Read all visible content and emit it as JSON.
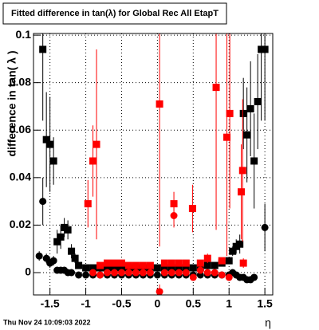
{
  "chart_data": {
    "type": "scatter",
    "title": "Fitted difference in tan(λ) for Global Rec All EtapT",
    "y_label": "difference in tan( λ )",
    "x_label": "η",
    "footer": "Thu Nov 24 10:09:03 2022",
    "xlim": [
      -1.73,
      1.61
    ],
    "ylim": [
      -0.0094,
      0.1007
    ],
    "xticks": [
      -1.5,
      -1,
      -0.5,
      0,
      0.5,
      1,
      1.5
    ],
    "yticks": [
      0,
      0.02,
      0.04,
      0.06,
      0.08,
      0.1
    ],
    "grid": true,
    "series": [
      {
        "color": "#000000",
        "marker": "square",
        "x": [
          -1.6,
          -1.55,
          -1.5,
          -1.45,
          -1.4,
          -1.35,
          -1.3,
          -1.25,
          -1.2,
          -1.15,
          -1.1,
          -1.0,
          -0.9,
          -0.8,
          -0.7,
          -0.6,
          -0.5,
          -0.4,
          -0.3,
          -0.2,
          -0.1,
          0,
          0.1,
          0.2,
          0.3,
          0.4,
          0.5,
          0.6,
          0.7,
          0.8,
          0.9,
          1.0,
          1.05,
          1.1,
          1.15,
          1.2,
          1.25,
          1.3,
          1.35,
          1.4,
          1.45,
          1.5
        ],
        "values": [
          0.094,
          0.056,
          0.054,
          0.047,
          0.013,
          0.015,
          0.019,
          0.018,
          0.009,
          0.006,
          0.003,
          0.002,
          0.002,
          0.002,
          0.002,
          0.002,
          0.002,
          0.002,
          0.002,
          0.002,
          0.002,
          0.002,
          0.002,
          0.002,
          0.002,
          0.002,
          0.002,
          0.002,
          0.003,
          0.003,
          0.004,
          0.005,
          0.009,
          0.011,
          0.012,
          0.067,
          0.058,
          0.069,
          0.047,
          0.072,
          0.094,
          0.094
        ],
        "errors": [
          0.03,
          0.02,
          0.02,
          0.01,
          0.005,
          0.005,
          0.004,
          0.004,
          0.003,
          0.002,
          0.001,
          0.0005,
          0.0005,
          0.0005,
          0.0005,
          0.0005,
          0.0005,
          0.0005,
          0.0005,
          0.0005,
          0.0005,
          0.0005,
          0.0005,
          0.0005,
          0.0005,
          0.0005,
          0.0005,
          0.0005,
          0.0005,
          0.0005,
          0.0005,
          0.001,
          0.002,
          0.003,
          0.004,
          0.015,
          0.02,
          0.02,
          0.02,
          0.02,
          0.03,
          0.03
        ]
      },
      {
        "color": "#000000",
        "marker": "circle",
        "x": [
          -1.65,
          -1.6,
          -1.55,
          -1.5,
          -1.45,
          -1.4,
          -1.35,
          -1.3,
          -1.25,
          -1.2,
          -1.1,
          -1.0,
          -0.9,
          -0.8,
          -0.7,
          -0.6,
          -0.5,
          -0.4,
          -0.3,
          -0.2,
          -0.1,
          0,
          0.1,
          0.2,
          0.3,
          0.4,
          0.5,
          0.6,
          0.7,
          0.8,
          0.9,
          1.0,
          1.05,
          1.1,
          1.15,
          1.2,
          1.25,
          1.3,
          1.35,
          1.5
        ],
        "values": [
          0.007,
          0.03,
          0.006,
          0.004,
          0.005,
          0.001,
          0.001,
          0.001,
          0.0,
          0.0,
          -0.001,
          -0.001,
          -0.001,
          -0.001,
          -0.001,
          -0.001,
          -0.001,
          -0.001,
          -0.001,
          -0.001,
          -0.001,
          -0.001,
          -0.001,
          -0.001,
          -0.001,
          -0.001,
          -0.001,
          -0.001,
          -0.001,
          -0.001,
          -0.001,
          -0.001,
          0.0,
          -0.001,
          -0.002,
          -0.002,
          -0.003,
          -0.003,
          -0.002,
          0.019
        ],
        "errors": [
          0.002,
          0.01,
          0.002,
          0.002,
          0.002,
          0.001,
          0.001,
          0.001,
          0.001,
          0.001,
          0.0005,
          0.0005,
          0.0005,
          0.0005,
          0.0005,
          0.0005,
          0.0005,
          0.0005,
          0.0005,
          0.0005,
          0.0005,
          0.0005,
          0.0005,
          0.0005,
          0.0005,
          0.0005,
          0.0005,
          0.0005,
          0.0005,
          0.0005,
          0.0005,
          0.0005,
          0.001,
          0.001,
          0.001,
          0.001,
          0.001,
          0.001,
          0.001,
          0.01
        ]
      },
      {
        "color": "#ff0000",
        "marker": "square",
        "x": [
          -0.97,
          -0.9,
          -0.85,
          -0.8,
          -0.7,
          -0.6,
          -0.5,
          -0.4,
          -0.3,
          -0.2,
          -0.1,
          0.03,
          0.1,
          0.2,
          0.23,
          0.3,
          0.4,
          0.49,
          0.6,
          0.7,
          0.82,
          0.9,
          0.97,
          1.01,
          1.17,
          1.19,
          1.2
        ],
        "values": [
          0.029,
          0.047,
          0.054,
          0.003,
          0.004,
          0.004,
          0.004,
          0.003,
          0.003,
          0.003,
          0.003,
          0.071,
          0.004,
          0.004,
          0.029,
          0.004,
          0.004,
          0.027,
          0.004,
          0.006,
          0.078,
          0.005,
          0.057,
          0.067,
          0.034,
          0.043,
          0.004
        ],
        "errors": [
          0.01,
          0.015,
          0.04,
          0.001,
          0.001,
          0.001,
          0.001,
          0.001,
          0.001,
          0.001,
          0.001,
          0.06,
          0.001,
          0.001,
          0.005,
          0.001,
          0.001,
          0.01,
          0.001,
          0.002,
          0.06,
          0.001,
          0.05,
          0.04,
          0.02,
          0.03,
          0.002
        ]
      },
      {
        "color": "#ff0000",
        "marker": "circle",
        "x": [
          -0.9,
          -0.8,
          -0.7,
          -0.6,
          -0.5,
          -0.4,
          -0.3,
          -0.2,
          -0.1,
          0.03,
          0.1,
          0.2,
          0.23,
          0.3,
          0.4,
          0.5,
          0.6,
          0.7,
          0.8,
          0.9,
          1.0
        ],
        "values": [
          0.0,
          -0.001,
          0.0,
          0.0,
          0.0,
          0.0,
          0.0,
          0.0,
          0.0,
          -0.008,
          0.0,
          0.0,
          0.024,
          0.0,
          0.0,
          -0.002,
          0.001,
          0.0,
          0.0,
          -0.001,
          -0.002
        ],
        "errors": [
          0.001,
          0.001,
          0.001,
          0.001,
          0.001,
          0.001,
          0.001,
          0.001,
          0.001,
          0.003,
          0.001,
          0.001,
          0.005,
          0.001,
          0.001,
          0.001,
          0.001,
          0.001,
          0.001,
          0.001,
          0.001
        ]
      }
    ]
  }
}
